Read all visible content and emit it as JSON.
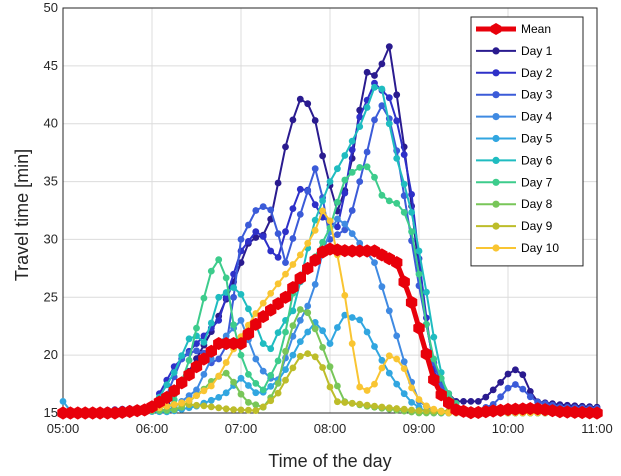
{
  "chart_data": {
    "type": "line",
    "title": "",
    "xlabel": "Time of the day",
    "ylabel": "Travel time [min]",
    "x_ticks": [
      "05:00",
      "06:00",
      "07:00",
      "08:00",
      "09:00",
      "10:00",
      "11:00"
    ],
    "y_ticks": [
      "15",
      "20",
      "25",
      "30",
      "35",
      "40",
      "45",
      "50"
    ],
    "xlim_hours": [
      5,
      11
    ],
    "ylim": [
      15,
      50
    ],
    "grid": true,
    "legend_position": "top-right",
    "series": [
      {
        "name": "Mean",
        "color": "#e8000b",
        "width": 5,
        "points": [
          [
            5.0,
            15
          ],
          [
            5.6,
            15
          ],
          [
            5.95,
            15.3
          ],
          [
            6.2,
            16.5
          ],
          [
            6.5,
            19
          ],
          [
            6.75,
            21
          ],
          [
            7.0,
            21
          ],
          [
            7.2,
            23
          ],
          [
            7.5,
            25
          ],
          [
            7.75,
            27.5
          ],
          [
            7.95,
            29.2
          ],
          [
            8.2,
            29
          ],
          [
            8.5,
            29
          ],
          [
            8.75,
            28
          ],
          [
            8.9,
            25
          ],
          [
            9.05,
            21
          ],
          [
            9.2,
            17
          ],
          [
            9.4,
            15.3
          ],
          [
            9.6,
            15
          ],
          [
            10.0,
            15.3
          ],
          [
            10.3,
            15.4
          ],
          [
            10.6,
            15.1
          ],
          [
            11.0,
            15
          ]
        ]
      },
      {
        "name": "Day 1",
        "color": "#2a1b8f",
        "width": 2,
        "points": [
          [
            5.0,
            15
          ],
          [
            5.9,
            15
          ],
          [
            6.2,
            16
          ],
          [
            6.45,
            19
          ],
          [
            6.7,
            22.5
          ],
          [
            6.9,
            26
          ],
          [
            7.1,
            30
          ],
          [
            7.3,
            30.5
          ],
          [
            7.5,
            38
          ],
          [
            7.65,
            42.2
          ],
          [
            7.8,
            41.5
          ],
          [
            7.95,
            36
          ],
          [
            8.1,
            32
          ],
          [
            8.25,
            37
          ],
          [
            8.4,
            44.5
          ],
          [
            8.55,
            44
          ],
          [
            8.65,
            47.5
          ],
          [
            8.8,
            40
          ],
          [
            8.9,
            34
          ],
          [
            9.05,
            24
          ],
          [
            9.2,
            18
          ],
          [
            9.4,
            16
          ],
          [
            9.7,
            16
          ],
          [
            9.9,
            17.5
          ],
          [
            10.05,
            18.8
          ],
          [
            10.15,
            18.6
          ],
          [
            10.3,
            16
          ],
          [
            10.6,
            15.7
          ],
          [
            11.0,
            15.5
          ]
        ]
      },
      {
        "name": "Day 2",
        "color": "#2e30c8",
        "width": 2,
        "points": [
          [
            5.0,
            15
          ],
          [
            6.0,
            15.5
          ],
          [
            6.25,
            19
          ],
          [
            6.5,
            21
          ],
          [
            6.75,
            23
          ],
          [
            7.0,
            29
          ],
          [
            7.2,
            31
          ],
          [
            7.4,
            28
          ],
          [
            7.55,
            32
          ],
          [
            7.7,
            35
          ],
          [
            7.9,
            32
          ],
          [
            8.1,
            31
          ],
          [
            8.3,
            40
          ],
          [
            8.5,
            43.5
          ],
          [
            8.7,
            42
          ],
          [
            8.9,
            35
          ],
          [
            9.05,
            25
          ],
          [
            9.2,
            17
          ],
          [
            9.5,
            15
          ],
          [
            11.0,
            15
          ]
        ]
      },
      {
        "name": "Day 3",
        "color": "#3b5bd8",
        "width": 2,
        "points": [
          [
            5.0,
            15
          ],
          [
            6.1,
            15.3
          ],
          [
            6.35,
            20
          ],
          [
            6.55,
            20.5
          ],
          [
            6.7,
            19
          ],
          [
            6.85,
            21
          ],
          [
            7.0,
            30
          ],
          [
            7.2,
            33
          ],
          [
            7.35,
            32.5
          ],
          [
            7.5,
            28
          ],
          [
            7.7,
            33
          ],
          [
            7.85,
            36.5
          ],
          [
            8.0,
            30
          ],
          [
            8.2,
            31
          ],
          [
            8.4,
            37
          ],
          [
            8.55,
            42
          ],
          [
            8.7,
            40
          ],
          [
            8.85,
            33
          ],
          [
            9.0,
            26
          ],
          [
            9.2,
            18
          ],
          [
            9.4,
            15.5
          ],
          [
            9.6,
            15
          ],
          [
            9.85,
            15.8
          ],
          [
            10.05,
            17.6
          ],
          [
            10.15,
            17.2
          ],
          [
            10.3,
            16
          ],
          [
            10.6,
            15.5
          ],
          [
            11.0,
            15.4
          ]
        ]
      },
      {
        "name": "Day 4",
        "color": "#3f8ae2",
        "width": 2,
        "points": [
          [
            5.0,
            15
          ],
          [
            6.2,
            15.2
          ],
          [
            6.5,
            17
          ],
          [
            6.75,
            21
          ],
          [
            7.0,
            23
          ],
          [
            7.2,
            19
          ],
          [
            7.4,
            17.5
          ],
          [
            7.6,
            22
          ],
          [
            7.8,
            25
          ],
          [
            7.95,
            30
          ],
          [
            8.1,
            32
          ],
          [
            8.3,
            30
          ],
          [
            8.5,
            28
          ],
          [
            8.7,
            23
          ],
          [
            8.85,
            19
          ],
          [
            9.0,
            16
          ],
          [
            9.2,
            15
          ],
          [
            11.0,
            15
          ]
        ]
      },
      {
        "name": "Day 5",
        "color": "#31a6e0",
        "width": 2,
        "points": [
          [
            5.0,
            16
          ],
          [
            5.05,
            15.2
          ],
          [
            6.2,
            15.1
          ],
          [
            6.5,
            15.6
          ],
          [
            6.8,
            16.5
          ],
          [
            7.0,
            18
          ],
          [
            7.2,
            16.5
          ],
          [
            7.45,
            18
          ],
          [
            7.65,
            21
          ],
          [
            7.85,
            23
          ],
          [
            8.0,
            21
          ],
          [
            8.15,
            23.5
          ],
          [
            8.35,
            23
          ],
          [
            8.55,
            20
          ],
          [
            8.7,
            18
          ],
          [
            8.9,
            16
          ],
          [
            9.1,
            15
          ],
          [
            11.0,
            15
          ]
        ]
      },
      {
        "name": "Day 6",
        "color": "#1fbcc0",
        "width": 2,
        "points": [
          [
            5.0,
            15
          ],
          [
            6.0,
            15.3
          ],
          [
            6.25,
            18.5
          ],
          [
            6.45,
            22
          ],
          [
            6.6,
            21
          ],
          [
            6.75,
            25
          ],
          [
            6.95,
            26
          ],
          [
            7.15,
            23
          ],
          [
            7.3,
            20
          ],
          [
            7.45,
            22.5
          ],
          [
            7.6,
            24
          ],
          [
            7.8,
            31
          ],
          [
            8.0,
            35
          ],
          [
            8.15,
            37
          ],
          [
            8.35,
            40
          ],
          [
            8.55,
            44.2
          ],
          [
            8.75,
            37
          ],
          [
            8.9,
            33
          ],
          [
            9.05,
            27
          ],
          [
            9.2,
            20
          ],
          [
            9.35,
            15.5
          ],
          [
            9.5,
            15
          ],
          [
            11.0,
            15
          ]
        ]
      },
      {
        "name": "Day 7",
        "color": "#3dcc8c",
        "width": 2,
        "points": [
          [
            5.0,
            15
          ],
          [
            6.2,
            15.2
          ],
          [
            6.4,
            19
          ],
          [
            6.55,
            24
          ],
          [
            6.7,
            28.2
          ],
          [
            6.8,
            28.3
          ],
          [
            6.95,
            21
          ],
          [
            7.1,
            18
          ],
          [
            7.25,
            17
          ],
          [
            7.45,
            20
          ],
          [
            7.6,
            26
          ],
          [
            7.8,
            28
          ],
          [
            8.0,
            31
          ],
          [
            8.15,
            35
          ],
          [
            8.3,
            36.2
          ],
          [
            8.45,
            36.3
          ],
          [
            8.6,
            33.5
          ],
          [
            8.8,
            33
          ],
          [
            8.95,
            30
          ],
          [
            9.05,
            24
          ],
          [
            9.15,
            20
          ],
          [
            9.3,
            17
          ],
          [
            9.5,
            15
          ],
          [
            11.0,
            15
          ]
        ]
      },
      {
        "name": "Day 8",
        "color": "#78c659",
        "width": 2,
        "points": [
          [
            5.0,
            15
          ],
          [
            6.3,
            15.3
          ],
          [
            6.55,
            16.8
          ],
          [
            6.7,
            18
          ],
          [
            6.85,
            18.5
          ],
          [
            7.05,
            16
          ],
          [
            7.25,
            15.5
          ],
          [
            7.4,
            17
          ],
          [
            7.55,
            22
          ],
          [
            7.7,
            24.5
          ],
          [
            7.85,
            22
          ],
          [
            8.0,
            19
          ],
          [
            8.15,
            16
          ],
          [
            8.4,
            15.6
          ],
          [
            8.7,
            15.3
          ],
          [
            9.0,
            15
          ],
          [
            11.0,
            15
          ]
        ]
      },
      {
        "name": "Day 9",
        "color": "#bdbd2a",
        "width": 2,
        "points": [
          [
            5.0,
            15
          ],
          [
            6.0,
            15.3
          ],
          [
            6.3,
            15.8
          ],
          [
            6.6,
            15.6
          ],
          [
            6.9,
            15.3
          ],
          [
            7.2,
            15.2
          ],
          [
            7.4,
            16.5
          ],
          [
            7.55,
            18.5
          ],
          [
            7.7,
            20.3
          ],
          [
            7.85,
            19.8
          ],
          [
            7.95,
            18.5
          ],
          [
            8.05,
            16
          ],
          [
            8.3,
            15.8
          ],
          [
            8.6,
            15.5
          ],
          [
            9.0,
            15.2
          ],
          [
            11.0,
            15
          ]
        ]
      },
      {
        "name": "Day 10",
        "color": "#f9c532",
        "width": 2,
        "points": [
          [
            5.0,
            15
          ],
          [
            6.0,
            15.3
          ],
          [
            6.4,
            16
          ],
          [
            6.7,
            17.5
          ],
          [
            6.95,
            21
          ],
          [
            7.2,
            24
          ],
          [
            7.45,
            26.5
          ],
          [
            7.7,
            29
          ],
          [
            7.85,
            31
          ],
          [
            7.95,
            33.2
          ],
          [
            8.05,
            30
          ],
          [
            8.15,
            26
          ],
          [
            8.25,
            21
          ],
          [
            8.35,
            16.5
          ],
          [
            8.5,
            17.5
          ],
          [
            8.65,
            20
          ],
          [
            8.8,
            19.5
          ],
          [
            8.95,
            16.5
          ],
          [
            9.1,
            15.5
          ],
          [
            9.3,
            15
          ],
          [
            11.0,
            15
          ]
        ]
      }
    ]
  }
}
